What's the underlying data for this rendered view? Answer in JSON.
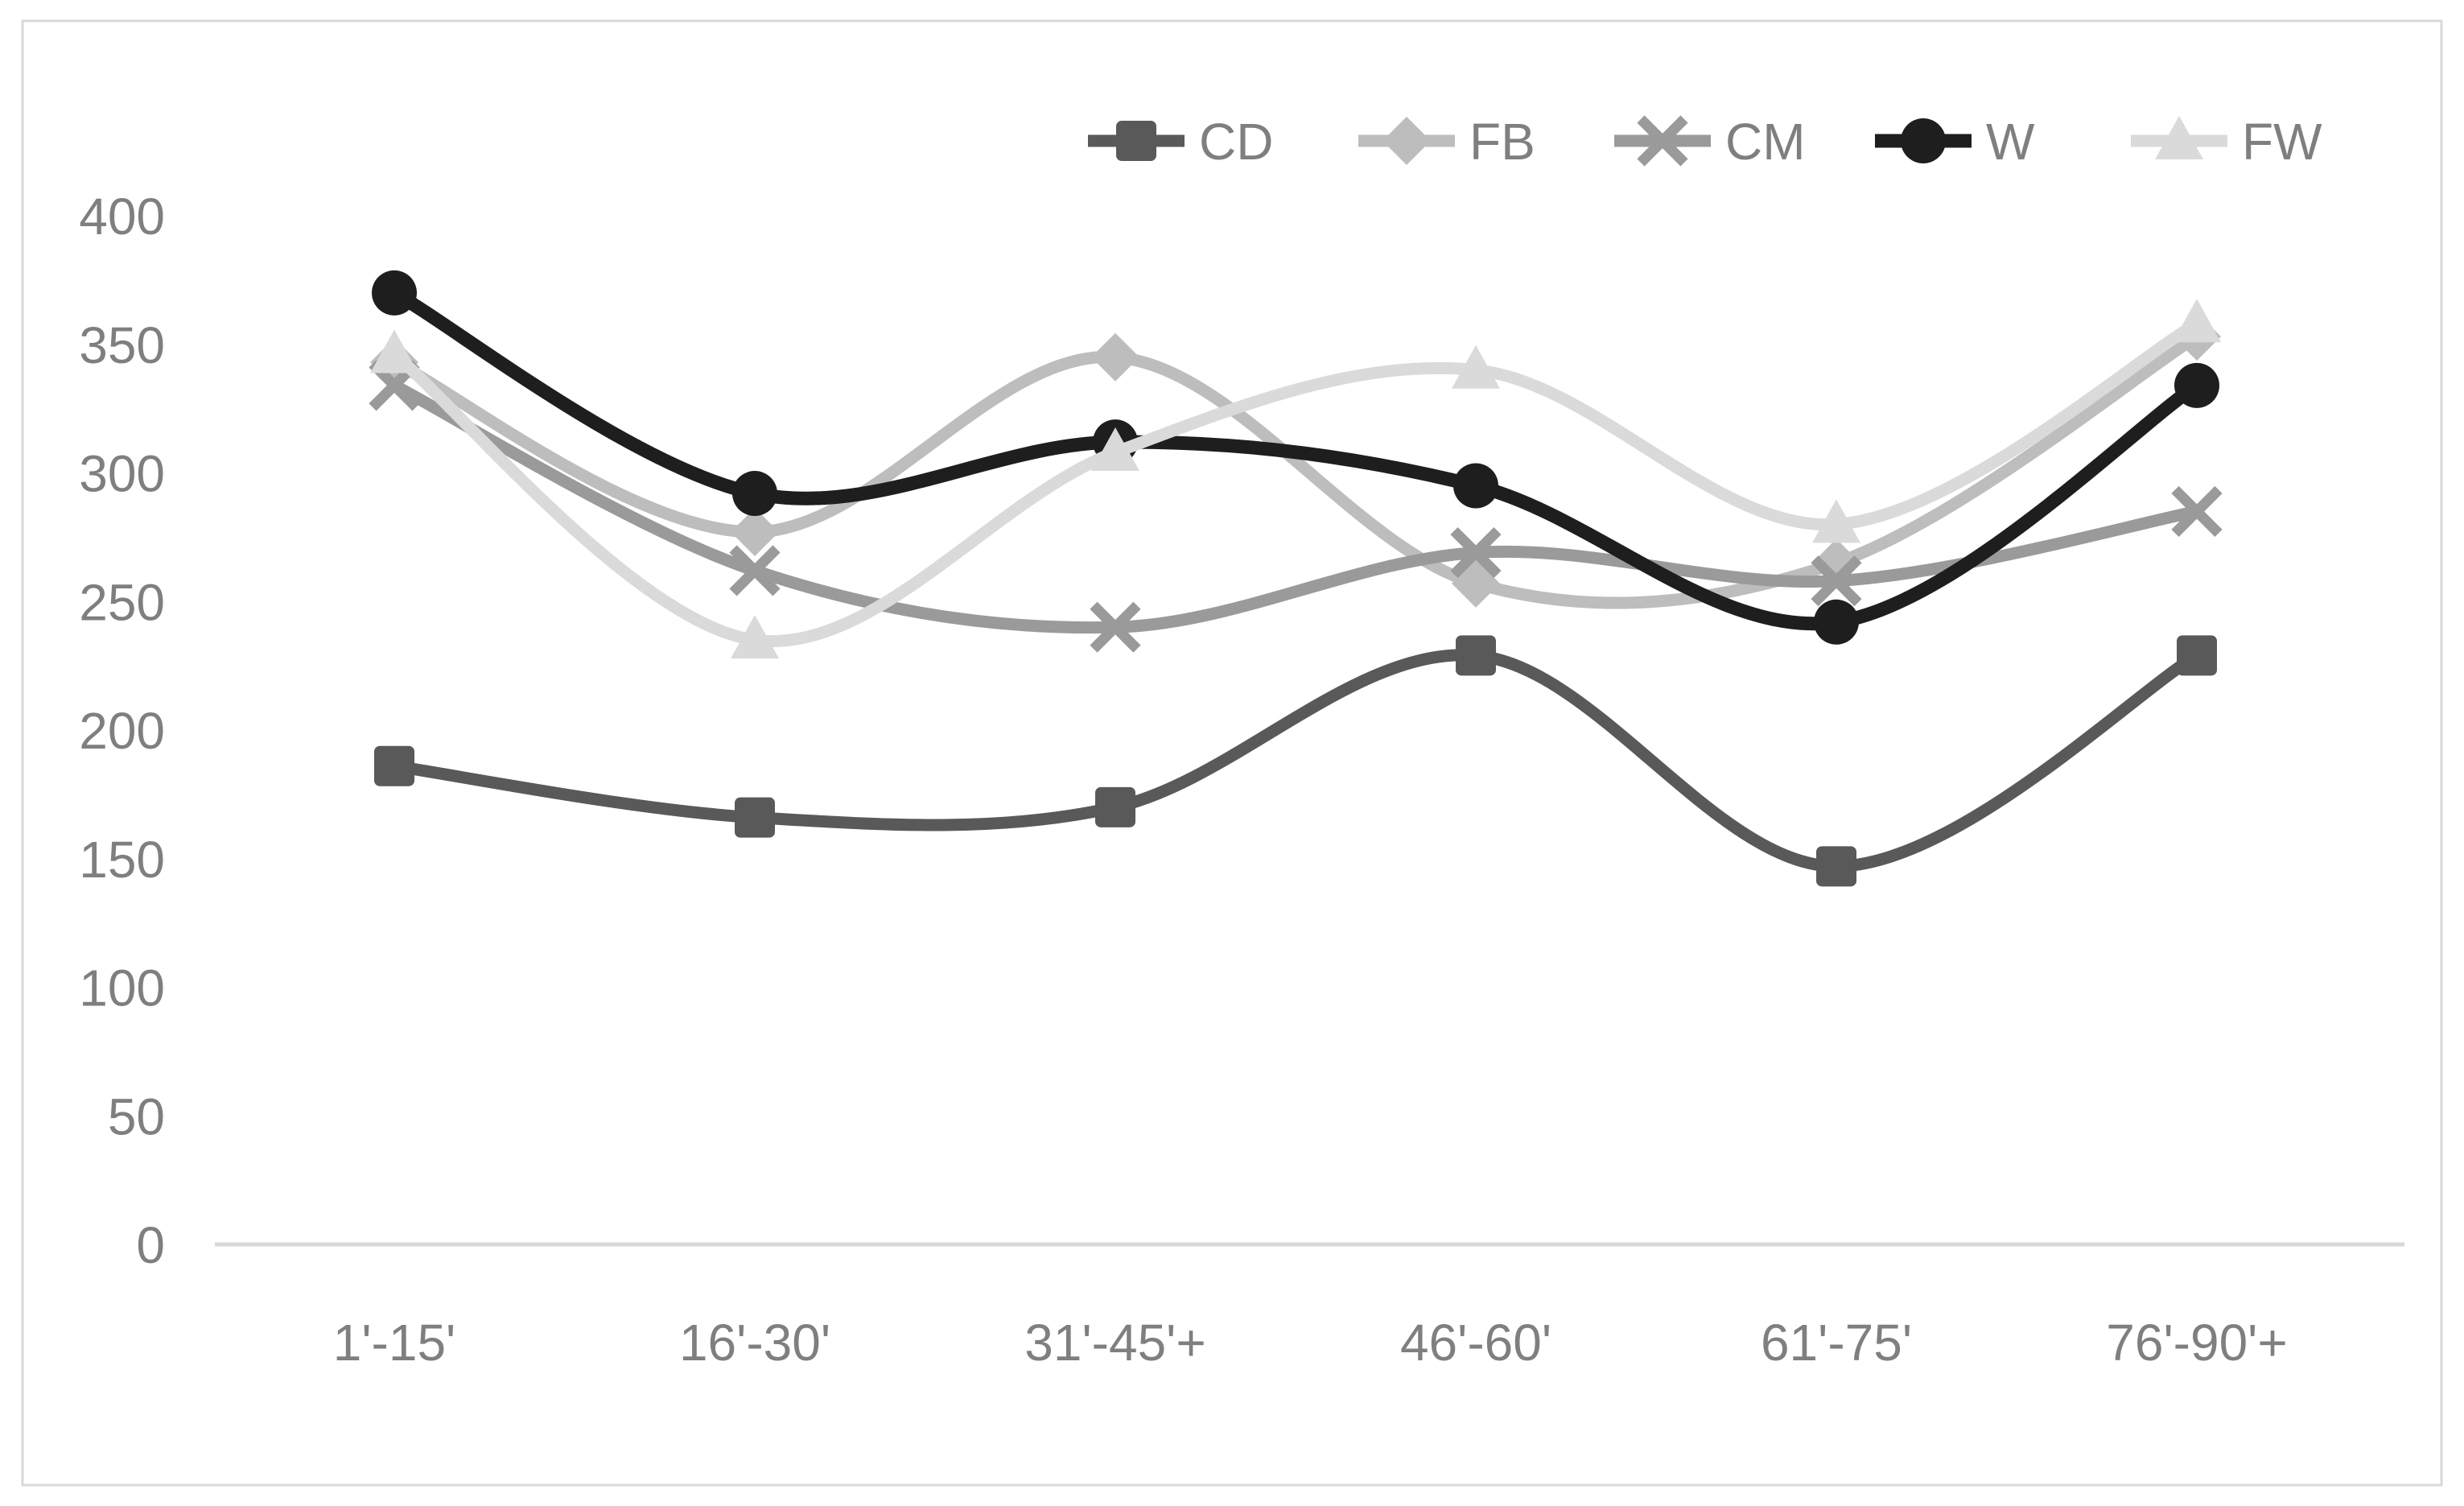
{
  "chart_style": {
    "background": "#ffffff",
    "frame_color": "#d9d9d9",
    "axis_line_color": "#d9d9d9",
    "tick_text_color": "#7f7f7f",
    "legend_text_color": "#7f7f7f"
  },
  "chart_data": {
    "type": "line",
    "title": "",
    "xlabel": "",
    "ylabel": "",
    "grid": false,
    "smooth": true,
    "legend_position": "top",
    "categories": [
      "1'-15'",
      "16'-30'",
      "31'-45'+",
      "46'-60'",
      "61'-75'",
      "76'-90'+"
    ],
    "yticks": [
      400,
      350,
      300,
      250,
      200,
      150,
      100,
      50,
      0
    ],
    "ylim": [
      0,
      400
    ],
    "series": [
      {
        "name": "CD",
        "marker": "square",
        "color": "#595959",
        "line_width": 15,
        "values": [
          186,
          166,
          170,
          229,
          147,
          229
        ]
      },
      {
        "name": "FB",
        "marker": "diamond",
        "color": "#bdbdbd",
        "line_width": 15,
        "values": [
          343,
          277,
          345,
          257,
          265,
          353
        ]
      },
      {
        "name": "CM",
        "marker": "x",
        "color": "#9a9a9a",
        "line_width": 15,
        "values": [
          334,
          262,
          240,
          269,
          258,
          285
        ]
      },
      {
        "name": "W",
        "marker": "circle",
        "color": "#1e1e1e",
        "line_width": 17,
        "values": [
          370,
          292,
          312,
          295,
          242,
          334
        ]
      },
      {
        "name": "FW",
        "marker": "triangle",
        "color": "#dadada",
        "line_width": 15,
        "values": [
          346,
          235,
          308,
          340,
          280,
          358
        ]
      }
    ]
  }
}
